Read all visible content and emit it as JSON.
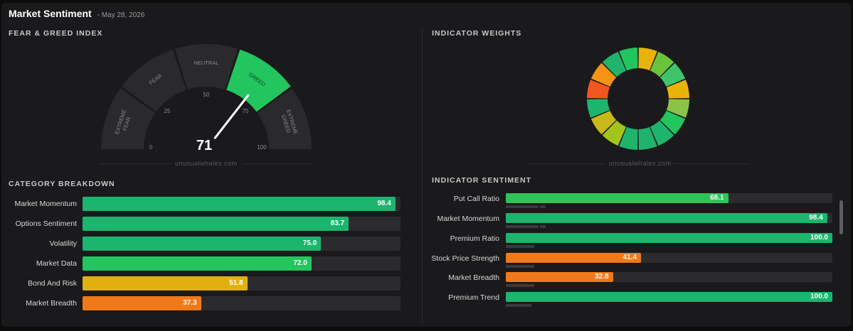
{
  "header": {
    "title": "Market Sentiment",
    "date": "- May 28, 2026"
  },
  "fear_greed": {
    "section_title": "FEAR & GREED INDEX",
    "value": 71,
    "value_label": "71",
    "segments": [
      "EXTREME FEAR",
      "FEAR",
      "NEUTRAL",
      "GREED",
      "EXTREME GREED"
    ],
    "ticks": [
      "0",
      "25",
      "50",
      "75",
      "100"
    ],
    "active_segment": "GREED",
    "active_color": "#22c55e",
    "watermark": "unusualwhales.com"
  },
  "weights": {
    "section_title": "INDICATOR WEIGHTS",
    "watermark": "unusualwhales.com",
    "slice_colors": [
      "#eab308",
      "#6ac43a",
      "#3ec46a",
      "#eab308",
      "#8bc34a",
      "#22c55e",
      "#1fb46c",
      "#1fb46c",
      "#1fb46c",
      "#a3c41b",
      "#c8b81a",
      "#1fb46c",
      "#f0561f",
      "#f59316",
      "#1fb46c",
      "#22c55e"
    ]
  },
  "category": {
    "section_title": "CATEGORY BREAKDOWN",
    "rows": [
      {
        "label": "Market Momentum",
        "value": "98.4",
        "pct": 98.4,
        "color": "#1db46e"
      },
      {
        "label": "Options Sentiment",
        "value": "83.7",
        "pct": 83.7,
        "color": "#1db46e"
      },
      {
        "label": "Volatility",
        "value": "75.0",
        "pct": 75.0,
        "color": "#1db46e"
      },
      {
        "label": "Market Data",
        "value": "72.0",
        "pct": 72.0,
        "color": "#22c55e"
      },
      {
        "label": "Bond And Risk",
        "value": "51.8",
        "pct": 51.8,
        "color": "#e0b010"
      },
      {
        "label": "Market Breadth",
        "value": "37.3",
        "pct": 37.3,
        "color": "#f07a1a"
      }
    ]
  },
  "indicators": {
    "section_title": "INDICATOR SENTIMENT",
    "rows": [
      {
        "label": "Put Call Ratio",
        "value": "68.1",
        "pct": 68.1,
        "color": "#2ec458"
      },
      {
        "label": "Market Momentum",
        "value": "98.4",
        "pct": 98.4,
        "color": "#1db46e"
      },
      {
        "label": "Premium Ratio",
        "value": "100.0",
        "pct": 100.0,
        "color": "#1db46e"
      },
      {
        "label": "Stock Price Strength",
        "value": "41.4",
        "pct": 41.4,
        "color": "#f07a1a"
      },
      {
        "label": "Market Breadth",
        "value": "32.8",
        "pct": 32.8,
        "color": "#f07a1a"
      },
      {
        "label": "Premium Trend",
        "value": "100.0",
        "pct": 100.0,
        "color": "#1db46e"
      }
    ]
  }
}
